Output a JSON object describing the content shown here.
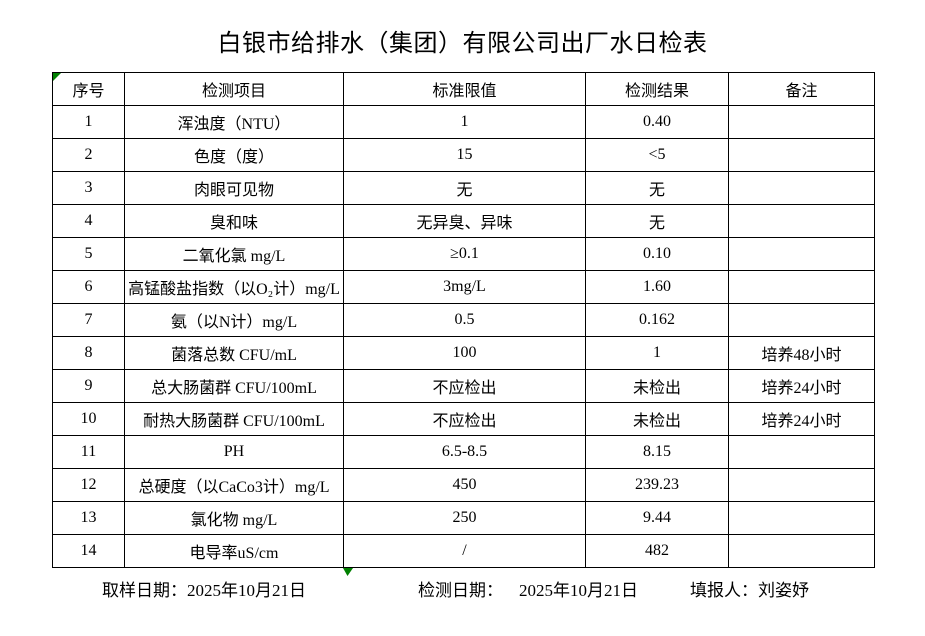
{
  "title": "白银市给排水（集团）有限公司出厂水日检表",
  "table": {
    "headers": {
      "no": "序号",
      "item": "检测项目",
      "limit": "标准限值",
      "result": "检测结果",
      "remark": "备注"
    },
    "rows": [
      {
        "no": "1",
        "item": "浑浊度（NTU）",
        "limit": "1",
        "result": "0.40",
        "remark": ""
      },
      {
        "no": "2",
        "item": "色度（度）",
        "limit": "15",
        "result": "<5",
        "remark": ""
      },
      {
        "no": "3",
        "item": "肉眼可见物",
        "limit": "无",
        "result": "无",
        "remark": ""
      },
      {
        "no": "4",
        "item": "臭和味",
        "limit": "无异臭、异味",
        "result": "无",
        "remark": ""
      },
      {
        "no": "5",
        "item": "二氧化氯 mg/L",
        "limit": "≥0.1",
        "result": "0.10",
        "remark": ""
      },
      {
        "no": "6",
        "item": "高锰酸盐指数（以O₂计）mg/L",
        "limit": "3mg/L",
        "result": "1.60",
        "remark": ""
      },
      {
        "no": "7",
        "item": "氨（以N计）mg/L",
        "limit": "0.5",
        "result": "0.162",
        "remark": ""
      },
      {
        "no": "8",
        "item": "菌落总数 CFU/mL",
        "limit": "100",
        "result": "1",
        "remark": "培养48小时"
      },
      {
        "no": "9",
        "item": "总大肠菌群 CFU/100mL",
        "limit": "不应检出",
        "result": "未检出",
        "remark": "培养24小时"
      },
      {
        "no": "10",
        "item": "耐热大肠菌群 CFU/100mL",
        "limit": "不应检出",
        "result": "未检出",
        "remark": "培养24小时"
      },
      {
        "no": "11",
        "item": "PH",
        "limit": "6.5-8.5",
        "result": "8.15",
        "remark": ""
      },
      {
        "no": "12",
        "item": "总硬度（以CaCo3计）mg/L",
        "limit": "450",
        "result": "239.23",
        "remark": ""
      },
      {
        "no": "13",
        "item": "氯化物 mg/L",
        "limit": "250",
        "result": "9.44",
        "remark": ""
      },
      {
        "no": "14",
        "item": "电导率uS/cm",
        "limit": "/",
        "result": "482",
        "remark": ""
      }
    ]
  },
  "footer": {
    "sampling_label": "取样日期：",
    "sampling_date": "2025年10月21日",
    "testing_label": "检测日期：",
    "testing_date": "2025年10月21日",
    "reporter_label": "填报人：",
    "reporter_name": "刘姿妤"
  },
  "colors": {
    "marker_green": "#008000",
    "table_border": "#000000",
    "text": "#000000",
    "background": "#ffffff"
  }
}
